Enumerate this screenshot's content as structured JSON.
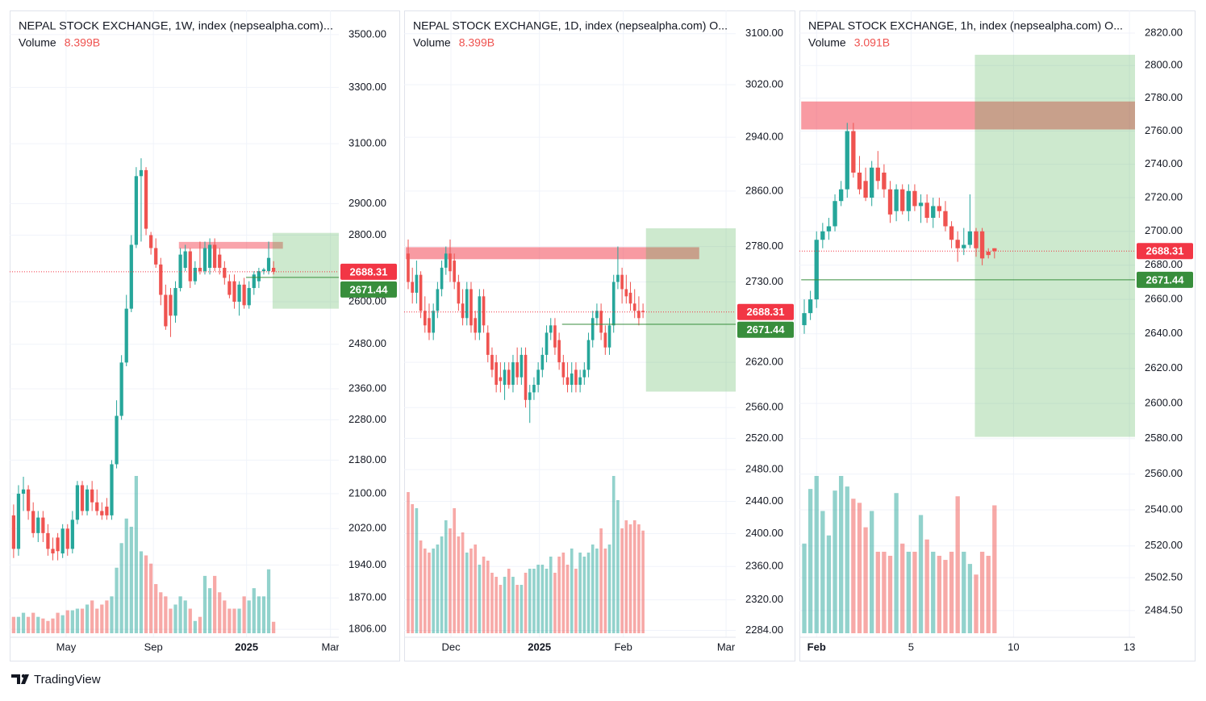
{
  "chart_data": [
    {
      "type": "candlestick",
      "title": "NEPAL STOCK EXCHANGE, 1W, index (nepsealpha.com)...",
      "volume_title": "Volume",
      "volume_label": "8.399B",
      "log_scale": true,
      "grid": true,
      "up_color": "#26a69a",
      "down_color": "#ef5350",
      "volume_up_color": "rgba(38,166,154,0.5)",
      "volume_down_color": "rgba(239,83,80,0.5)",
      "ylim": [
        1790,
        3595
      ],
      "yticks": [
        {
          "value": 3500,
          "label": "3500.00"
        },
        {
          "value": 3300,
          "label": "3300.00"
        },
        {
          "value": 3100,
          "label": "3100.00"
        },
        {
          "value": 2900,
          "label": "2900.00"
        },
        {
          "value": 2800,
          "label": "2800.00"
        },
        {
          "value": 2600,
          "label": "2600.00"
        },
        {
          "value": 2480,
          "label": "2480.00"
        },
        {
          "value": 2360,
          "label": "2360.00"
        },
        {
          "value": 2280,
          "label": "2280.00"
        },
        {
          "value": 2180,
          "label": "2180.00"
        },
        {
          "value": 2100,
          "label": "2100.00"
        },
        {
          "value": 2020,
          "label": "2020.00"
        },
        {
          "value": 1940,
          "label": "1940.00"
        },
        {
          "value": 1870,
          "label": "1870.00"
        },
        {
          "value": 1806,
          "label": "1806.00"
        }
      ],
      "xlim": [
        -0.8,
        66.3
      ],
      "xticks": [
        {
          "value": 10.7,
          "label": "May"
        },
        {
          "value": 28.5,
          "label": "Sep"
        },
        {
          "value": 47.5,
          "label": "2025",
          "bold": true
        },
        {
          "value": 64.6,
          "label": "Mar"
        }
      ],
      "open": [
        2050,
        1975,
        2100,
        2110,
        2060,
        2010,
        2045,
        2010,
        1975,
        2000,
        1965,
        2020,
        1975,
        2040,
        2120,
        2060,
        2110,
        2080,
        2060,
        2070,
        2050,
        2170,
        2290,
        2430,
        2580,
        2770,
        2990,
        3010,
        2800,
        2760,
        2710,
        2620,
        2620,
        2560,
        2640,
        2700,
        2750,
        2660,
        2700,
        2690,
        2700,
        2770,
        2740,
        2700,
        2660,
        2660,
        2600,
        2650,
        2590,
        2640,
        2660,
        2690,
        2690,
        2700
      ],
      "high": [
        2075,
        2120,
        2140,
        2120,
        2080,
        2060,
        2060,
        2030,
        2000,
        2010,
        2030,
        2030,
        2060,
        2130,
        2130,
        2120,
        2130,
        2110,
        2080,
        2090,
        2180,
        2330,
        2450,
        2620,
        2800,
        3020,
        3050,
        3020,
        2810,
        2790,
        2730,
        2650,
        2640,
        2660,
        2760,
        2770,
        2760,
        2720,
        2780,
        2780,
        2790,
        2790,
        2760,
        2720,
        2680,
        2680,
        2660,
        2670,
        2660,
        2690,
        2700,
        2700,
        2780,
        2720
      ],
      "low": [
        1955,
        1960,
        2060,
        2040,
        2000,
        1990,
        1990,
        1960,
        1950,
        1950,
        1955,
        1960,
        1965,
        2030,
        2050,
        2050,
        2060,
        2050,
        2040,
        2040,
        2040,
        2160,
        2280,
        2420,
        2570,
        2760,
        2780,
        2800,
        2740,
        2700,
        2590,
        2520,
        2500,
        2540,
        2630,
        2690,
        2640,
        2650,
        2680,
        2680,
        2680,
        2690,
        2680,
        2650,
        2610,
        2580,
        2560,
        2580,
        2580,
        2620,
        2640,
        2680,
        2680,
        2680
      ],
      "close": [
        1975,
        2100,
        2110,
        2060,
        2010,
        2045,
        2010,
        1975,
        1965,
        1970,
        2020,
        1975,
        2040,
        2120,
        2060,
        2110,
        2080,
        2060,
        2050,
        2050,
        2170,
        2290,
        2430,
        2580,
        2770,
        2990,
        3010,
        2820,
        2760,
        2710,
        2620,
        2530,
        2560,
        2640,
        2740,
        2750,
        2660,
        2700,
        2690,
        2760,
        2770,
        2700,
        2700,
        2670,
        2620,
        2600,
        2650,
        2590,
        2640,
        2680,
        2690,
        2695,
        2730,
        2688.31
      ],
      "volume": [
        12,
        12,
        15,
        12,
        15,
        12,
        10.8,
        9,
        10.8,
        15,
        13.2,
        16.8,
        16.8,
        18,
        18,
        21,
        24,
        18,
        21,
        24,
        27,
        48,
        66,
        84,
        78,
        115.2,
        60,
        57,
        51,
        36,
        30,
        27,
        18,
        21,
        27,
        24,
        18,
        9,
        12,
        42,
        33,
        42,
        30,
        24,
        18,
        18,
        18,
        27,
        24,
        33,
        27,
        27,
        46.8,
        8.399
      ],
      "zones": [
        {
          "x": [
            33.7,
            54.9
          ],
          "y": [
            2758,
            2779
          ],
          "color": "rgba(242,54,69,0.45)"
        },
        {
          "x": [
            52.8,
            66.3
          ],
          "y": [
            2580,
            2807
          ],
          "color": "rgba(76,175,80,0.28)"
        }
      ],
      "price_lines": [
        {
          "value": 2688.31,
          "color": "#f23645",
          "style": "dotted",
          "x_start": -0.8
        },
        {
          "value": 2671.44,
          "color": "#388e3c",
          "style": "solid",
          "x_start": 47.4
        }
      ]
    },
    {
      "type": "candlestick",
      "title": "NEPAL STOCK EXCHANGE, 1D, index (nepsealpha.com)  O...",
      "volume_title": "Volume",
      "volume_label": "8.399B",
      "log_scale": true,
      "grid": true,
      "up_color": "#26a69a",
      "down_color": "#ef5350",
      "volume_up_color": "rgba(38,166,154,0.5)",
      "volume_down_color": "rgba(239,83,80,0.5)",
      "ylim": [
        2276,
        3137
      ],
      "yticks": [
        {
          "value": 3100,
          "label": "3100.00"
        },
        {
          "value": 3020,
          "label": "3020.00"
        },
        {
          "value": 2940,
          "label": "2940.00"
        },
        {
          "value": 2860,
          "label": "2860.00"
        },
        {
          "value": 2780,
          "label": "2780.00"
        },
        {
          "value": 2730,
          "label": "2730.00"
        },
        {
          "value": 2620,
          "label": "2620.00"
        },
        {
          "value": 2560,
          "label": "2560.00"
        },
        {
          "value": 2520,
          "label": "2520.00"
        },
        {
          "value": 2480,
          "label": "2480.00"
        },
        {
          "value": 2440,
          "label": "2440.00"
        },
        {
          "value": 2400,
          "label": "2400.00"
        },
        {
          "value": 2360,
          "label": "2360.00"
        },
        {
          "value": 2320,
          "label": "2320.00"
        },
        {
          "value": 2284,
          "label": "2284.00"
        }
      ],
      "xlim": [
        -0.96,
        78.1
      ],
      "xticks": [
        {
          "value": 10.2,
          "label": "Dec"
        },
        {
          "value": 31.3,
          "label": "2025",
          "bold": true
        },
        {
          "value": 51.3,
          "label": "Feb"
        },
        {
          "value": 75.8,
          "label": "Mar"
        }
      ],
      "open": [
        2770,
        2730,
        2715,
        2740,
        2690,
        2680,
        2660,
        2690,
        2720,
        2750,
        2770,
        2760,
        2730,
        2700,
        2680,
        2720,
        2680,
        2660,
        2710,
        2660,
        2630,
        2620,
        2600,
        2590,
        2610,
        2590,
        2620,
        2600,
        2630,
        2570,
        2580,
        2590,
        2610,
        2630,
        2660,
        2670,
        2650,
        2620,
        2600,
        2590,
        2610,
        2590,
        2600,
        2610,
        2650,
        2680,
        2690,
        2660,
        2640,
        2670,
        2730,
        2740,
        2720,
        2715,
        2700,
        2690,
        2690
      ],
      "high": [
        2790,
        2750,
        2760,
        2745,
        2710,
        2700,
        2700,
        2730,
        2760,
        2780,
        2790,
        2770,
        2740,
        2720,
        2730,
        2730,
        2690,
        2720,
        2720,
        2670,
        2640,
        2630,
        2620,
        2620,
        2620,
        2630,
        2640,
        2640,
        2640,
        2590,
        2600,
        2620,
        2640,
        2670,
        2680,
        2680,
        2660,
        2630,
        2620,
        2620,
        2620,
        2610,
        2620,
        2660,
        2690,
        2700,
        2700,
        2670,
        2680,
        2740,
        2780,
        2750,
        2740,
        2730,
        2720,
        2710,
        2700
      ],
      "low": [
        2720,
        2700,
        2700,
        2680,
        2660,
        2650,
        2650,
        2680,
        2710,
        2740,
        2730,
        2720,
        2690,
        2670,
        2670,
        2660,
        2650,
        2650,
        2660,
        2620,
        2600,
        2580,
        2580,
        2570,
        2585,
        2580,
        2590,
        2590,
        2560,
        2540,
        2570,
        2580,
        2600,
        2620,
        2650,
        2630,
        2610,
        2590,
        2580,
        2580,
        2580,
        2580,
        2590,
        2600,
        2640,
        2670,
        2650,
        2630,
        2630,
        2660,
        2720,
        2700,
        2700,
        2690,
        2680,
        2670,
        2680
      ],
      "close": [
        2730,
        2715,
        2740,
        2690,
        2670,
        2660,
        2690,
        2720,
        2750,
        2770,
        2745,
        2730,
        2700,
        2680,
        2720,
        2670,
        2660,
        2710,
        2670,
        2630,
        2610,
        2590,
        2595,
        2610,
        2590,
        2620,
        2600,
        2630,
        2570,
        2580,
        2590,
        2610,
        2630,
        2660,
        2670,
        2640,
        2620,
        2600,
        2590,
        2605,
        2590,
        2600,
        2610,
        2650,
        2680,
        2690,
        2660,
        2640,
        2670,
        2730,
        2740,
        2720,
        2710,
        2700,
        2690,
        2680,
        2688.31
      ],
      "volume": [
        11.55,
        10.56,
        10.23,
        7.59,
        6.93,
        6.6,
        6.93,
        7.26,
        7.92,
        9.24,
        8.58,
        10.23,
        7.92,
        8.25,
        6.6,
        6.93,
        7.26,
        5.61,
        6.27,
        5.94,
        4.95,
        4.62,
        3.96,
        4.62,
        5.28,
        4.62,
        3.96,
        3.96,
        4.95,
        5.28,
        5.28,
        5.61,
        5.61,
        5.28,
        6.27,
        4.95,
        6.27,
        6.6,
        5.61,
        6.93,
        5.28,
        6.6,
        6.27,
        6.6,
        7.26,
        6.93,
        8.58,
        6.93,
        7.26,
        12.87,
        10.89,
        8.58,
        9.24,
        8.91,
        9.24,
        8.91,
        8.399
      ],
      "zones": [
        {
          "x": [
            -0.6,
            69.4
          ],
          "y": [
            2762,
            2779
          ],
          "color": "rgba(242,54,69,0.5)"
        },
        {
          "x": [
            56.7,
            78.1
          ],
          "y": [
            2581,
            2806
          ],
          "color": "rgba(76,175,80,0.28)"
        }
      ],
      "price_lines": [
        {
          "value": 2688.31,
          "color": "#f23645",
          "style": "dotted",
          "x_start": -0.96
        },
        {
          "value": 2671.44,
          "color": "#388e3c",
          "style": "solid",
          "x_start": 36.7
        }
      ]
    },
    {
      "type": "candlestick",
      "title": "NEPAL STOCK EXCHANGE, 1h, index (nepsealpha.com)  O...",
      "volume_title": "Volume",
      "volume_label": "3.091B",
      "log_scale": true,
      "grid": true,
      "up_color": "#26a69a",
      "down_color": "#ef5350",
      "volume_up_color": "rgba(38,166,154,0.5)",
      "volume_down_color": "rgba(239,83,80,0.5)",
      "ylim": [
        2470,
        2834
      ],
      "yticks": [
        {
          "value": 2820,
          "label": "2820.00"
        },
        {
          "value": 2800,
          "label": "2800.00"
        },
        {
          "value": 2780,
          "label": "2780.00"
        },
        {
          "value": 2760,
          "label": "2760.00"
        },
        {
          "value": 2740,
          "label": "2740.00"
        },
        {
          "value": 2720,
          "label": "2720.00"
        },
        {
          "value": 2700,
          "label": "2700.00"
        },
        {
          "value": 2680,
          "label": "2680.00"
        },
        {
          "value": 2660,
          "label": "2660.00"
        },
        {
          "value": 2640,
          "label": "2640.00"
        },
        {
          "value": 2620,
          "label": "2620.00"
        },
        {
          "value": 2600,
          "label": "2600.00"
        },
        {
          "value": 2580,
          "label": "2580.00"
        },
        {
          "value": 2560,
          "label": "2560.00"
        },
        {
          "value": 2540,
          "label": "2540.00"
        },
        {
          "value": 2520,
          "label": "2520.00"
        },
        {
          "value": 2502.5,
          "label": "2502.50"
        },
        {
          "value": 2484.5,
          "label": "2484.50"
        }
      ],
      "xlim": [
        -0.79,
        53.9
      ],
      "xticks": [
        {
          "value": 2.0,
          "label": "Feb",
          "bold": true
        },
        {
          "value": 17.4,
          "label": "5"
        },
        {
          "value": 34.1,
          "label": "10"
        },
        {
          "value": 53.0,
          "label": "13"
        }
      ],
      "open": [
        2645,
        2652,
        2660,
        2695,
        2700,
        2703,
        2718,
        2725,
        2760,
        2735,
        2730,
        2720,
        2738,
        2735,
        2725,
        2712,
        2725,
        2712,
        2724,
        2715,
        2717,
        2708,
        2715,
        2712,
        2703,
        2695,
        2690,
        2692,
        2700,
        2700,
        2688,
        2690
      ],
      "high": [
        2660,
        2665,
        2700,
        2705,
        2708,
        2722,
        2730,
        2765,
        2765,
        2745,
        2738,
        2742,
        2748,
        2740,
        2730,
        2728,
        2728,
        2728,
        2728,
        2722,
        2722,
        2720,
        2720,
        2718,
        2706,
        2700,
        2702,
        2722,
        2702,
        2702,
        2690,
        2690
      ],
      "low": [
        2640,
        2648,
        2655,
        2690,
        2695,
        2700,
        2715,
        2720,
        2732,
        2722,
        2718,
        2715,
        2725,
        2720,
        2705,
        2706,
        2710,
        2706,
        2712,
        2705,
        2705,
        2702,
        2708,
        2700,
        2690,
        2682,
        2686,
        2690,
        2685,
        2680,
        2684,
        2684
      ],
      "close": [
        2652,
        2660,
        2695,
        2700,
        2703,
        2718,
        2725,
        2760,
        2735,
        2725,
        2720,
        2738,
        2730,
        2725,
        2710,
        2725,
        2712,
        2724,
        2715,
        2717,
        2708,
        2715,
        2712,
        2703,
        2695,
        2690,
        2692,
        2700,
        2690,
        2684,
        2686,
        2688.31
      ],
      "volume": [
        2.167,
        3.487,
        3.802,
        2.955,
        2.364,
        3.448,
        3.802,
        3.546,
        3.251,
        3.152,
        2.561,
        2.955,
        1.97,
        1.97,
        1.872,
        3.388,
        2.167,
        1.97,
        1.97,
        2.857,
        2.266,
        1.97,
        1.872,
        1.773,
        1.97,
        3.31,
        1.97,
        1.675,
        1.418,
        1.97,
        1.872,
        3.091
      ],
      "zones": [
        {
          "x": [
            -0.5,
            53.9
          ],
          "y": [
            2761,
            2778
          ],
          "color": "rgba(242,54,69,0.5)"
        },
        {
          "x": [
            27.8,
            53.9
          ],
          "y": [
            2581,
            2806.6
          ],
          "color": "rgba(76,175,80,0.28)"
        }
      ],
      "price_lines": [
        {
          "value": 2688.31,
          "color": "#f23645",
          "style": "dotted",
          "x_start": -0.79
        },
        {
          "value": 2671.44,
          "color": "#388e3c",
          "style": "solid",
          "x_start": -0.5
        }
      ]
    }
  ],
  "footer": "TradingView"
}
